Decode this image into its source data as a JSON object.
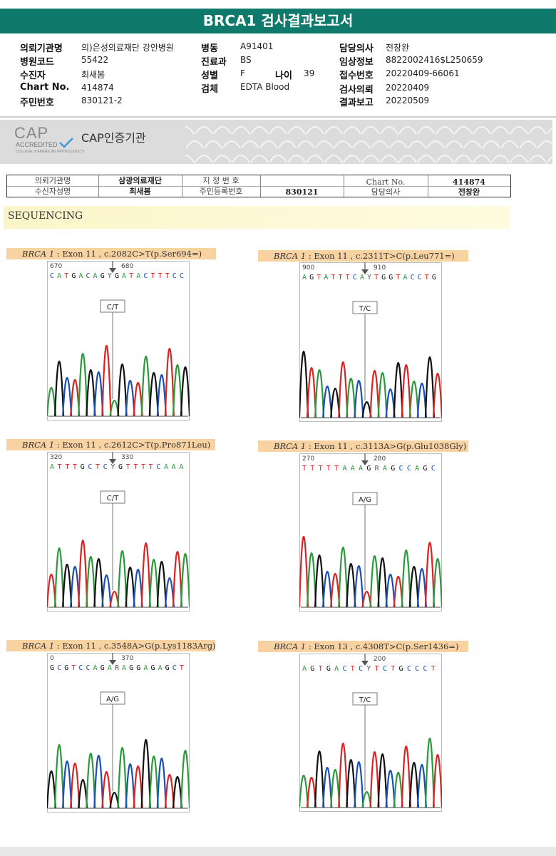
{
  "title": "BRCA1 검사결과보고서",
  "header": [
    {
      "label": "의뢰기관명",
      "value": "의)은성의료재단 강안병원"
    },
    {
      "label": "병원코드",
      "value": "55422"
    },
    {
      "label": "수진자",
      "value": "최새봄"
    },
    {
      "label": "Chart No.",
      "value": "414874"
    },
    {
      "label": "주민번호",
      "value": "830121-2"
    },
    {
      "label": "병동",
      "value": "A91401"
    },
    {
      "label": "진료과",
      "value": "BS"
    },
    {
      "label": "성별",
      "value": "F"
    },
    {
      "label": "나이",
      "value": "39"
    },
    {
      "label": "검체",
      "value": "EDTA Blood"
    },
    {
      "label": "담당의사",
      "value": "전창완"
    },
    {
      "label": "임상정보",
      "value": "8822002416$L250659"
    },
    {
      "label": "접수번호",
      "value": "20220409-66061"
    },
    {
      "label": "검사의뢰",
      "value": "20220409"
    },
    {
      "label": "결과보고",
      "value": "20220509"
    }
  ],
  "cap": {
    "logo": "CAP",
    "accredited": "ACCREDITED",
    "college": "COLLEGE of AMERICAN PATHOLOGISTS",
    "title": "CAP인증기관"
  },
  "patient_table": {
    "r1": [
      "의뢰기관명",
      "삼광의료재단",
      "지 정 번 호",
      "",
      "Chart No.",
      "414874"
    ],
    "r2": [
      "수신자성명",
      "최새봄",
      "주민등록번호",
      "830121",
      "담당의사",
      "전창완"
    ]
  },
  "section": "SEQUENCING",
  "variants": [
    {
      "gene": "BRCA 1",
      "desc": " : Exon 11 , c.2082C>T(p.Ser694=)",
      "n1": "670",
      "n2": "680",
      "seq": "CATGACAGYGATACTTTCC",
      "call": "C/T",
      "colors": [
        "#2a9a3a",
        "#111",
        "#1a4fb5",
        "#d22"
      ]
    },
    {
      "gene": "BRCA 1",
      "desc": " : Exon 11 , c.2311T>C(p.Leu771=)",
      "n1": "900",
      "n2": "910",
      "seq": "AGTATTTCAYTGGTACCTG",
      "call": "T/C",
      "colors": [
        "#111",
        "#d22",
        "#2a9a3a",
        "#1a4fb5"
      ]
    },
    {
      "gene": "BRCA 1",
      "desc": " : Exon 11 , c.2612C>T(p.Pro871Leu)",
      "n1": "320",
      "n2": "330",
      "seq": "ATTTGCTCYGTTTTCAAA",
      "call": "C/T",
      "colors": [
        "#d22",
        "#2a9a3a",
        "#111",
        "#1a4fb5"
      ]
    },
    {
      "gene": "BRCA 1",
      "desc": " : Exon 11 , c.3113A>G(p.Glu1038Gly)",
      "n1": "270",
      "n2": "280",
      "seq": "TTTTTAAAGRAGCCAGC",
      "call": "A/G",
      "colors": [
        "#d22",
        "#2a9a3a",
        "#111",
        "#1a4fb5"
      ]
    },
    {
      "gene": "BRCA 1",
      "desc": " : Exon 11 , c.3548A>G(p.Lys1183Arg)",
      "n1": "0",
      "n2": "370",
      "seq": "GCGTCCAGARAGGAGAGCT",
      "call": "A/G",
      "colors": [
        "#111",
        "#2a9a3a",
        "#1a4fb5",
        "#d22"
      ]
    },
    {
      "gene": "BRCA 1",
      "desc": " : Exon 13 , c.4308T>C(p.Ser1436=)",
      "n1": "",
      "n2": "200",
      "seq": "AGTGACTCYTCTGCCCT",
      "call": "T/C",
      "colors": [
        "#2a9a3a",
        "#d22",
        "#111",
        "#1a4fb5"
      ]
    }
  ]
}
